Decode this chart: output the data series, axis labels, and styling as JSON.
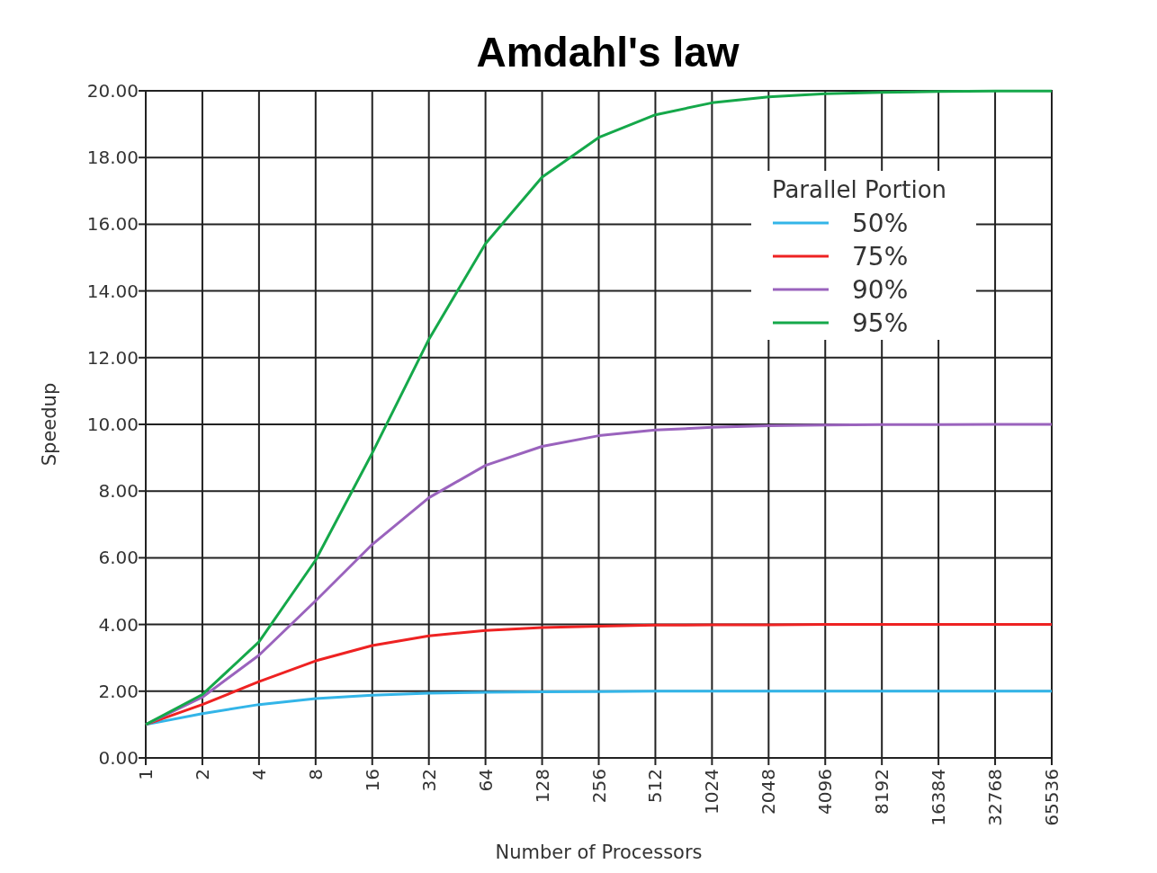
{
  "chart_data": {
    "type": "line",
    "title": "Amdahl's law",
    "xlabel": "Number of Processors",
    "ylabel": "Speedup",
    "legend_title": "Parallel Portion",
    "categories": [
      "1",
      "2",
      "4",
      "8",
      "16",
      "32",
      "64",
      "128",
      "256",
      "512",
      "1024",
      "2048",
      "4096",
      "8192",
      "16384",
      "32768",
      "65536"
    ],
    "series": [
      {
        "name": "50%",
        "color": "#33b5e8",
        "values": [
          1,
          1.33,
          1.6,
          1.78,
          1.88,
          1.94,
          1.97,
          1.98,
          1.99,
          2,
          2,
          2,
          2,
          2,
          2,
          2,
          2
        ]
      },
      {
        "name": "75%",
        "color": "#ee2222",
        "values": [
          1,
          1.6,
          2.29,
          2.91,
          3.37,
          3.66,
          3.82,
          3.91,
          3.95,
          3.98,
          3.99,
          3.99,
          4,
          4,
          4,
          4,
          4
        ]
      },
      {
        "name": "90%",
        "color": "#9a63bd",
        "values": [
          1,
          1.82,
          3.08,
          4.71,
          6.4,
          7.8,
          8.77,
          9.34,
          9.66,
          9.83,
          9.91,
          9.96,
          9.98,
          9.99,
          9.99,
          10,
          10
        ]
      },
      {
        "name": "95%",
        "color": "#15a84a",
        "values": [
          1,
          1.9,
          3.48,
          5.93,
          9.14,
          12.55,
          15.42,
          17.41,
          18.6,
          19.28,
          19.64,
          19.82,
          19.91,
          19.95,
          19.98,
          19.99,
          19.99
        ]
      }
    ],
    "ylim": [
      0,
      20
    ],
    "yticks": [
      {
        "value": 0,
        "label": "0.00"
      },
      {
        "value": 2,
        "label": "2.00"
      },
      {
        "value": 4,
        "label": "4.00"
      },
      {
        "value": 6,
        "label": "6.00"
      },
      {
        "value": 8,
        "label": "8.00"
      },
      {
        "value": 10,
        "label": "10.00"
      },
      {
        "value": 12,
        "label": "12.00"
      },
      {
        "value": 14,
        "label": "14.00"
      },
      {
        "value": 16,
        "label": "16.00"
      },
      {
        "value": 18,
        "label": "18.00"
      },
      {
        "value": 20,
        "label": "20.00"
      }
    ],
    "grid": true,
    "legend": "top right",
    "marker": "none",
    "line_style": "solid"
  }
}
